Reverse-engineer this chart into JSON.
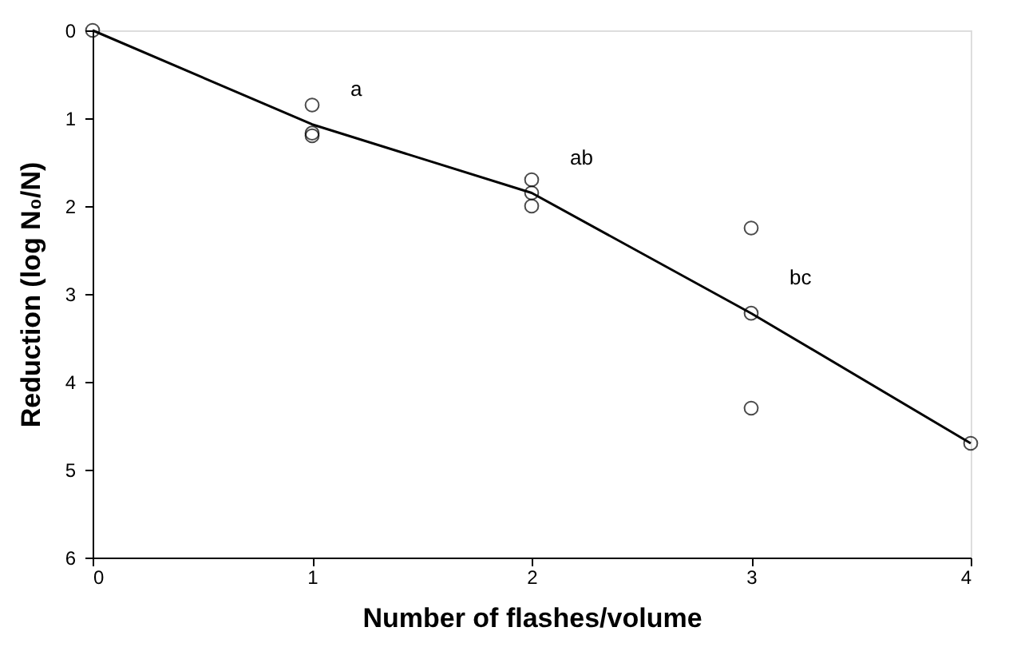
{
  "chart_data": {
    "type": "scatter",
    "xlabel": "Number of flashes/volume",
    "ylabel": "Reduction (log N₀/N)",
    "xlim": [
      0,
      4
    ],
    "xticks": [
      0,
      1,
      2,
      3,
      4
    ],
    "ylim": [
      6,
      0
    ],
    "yticks": [
      0,
      1,
      2,
      3,
      4,
      5,
      6
    ],
    "grid": false,
    "series": [
      {
        "marker": "circle",
        "color": "#000000",
        "x": [
          0,
          1,
          1,
          1,
          2,
          2,
          2,
          3,
          3,
          3,
          4
        ],
        "values": [
          0,
          0.85,
          1.17,
          1.2,
          1.7,
          1.85,
          2.0,
          2.25,
          3.22,
          4.3,
          4.7
        ]
      },
      {
        "type": "line",
        "marker": "none",
        "line_style": "solid",
        "color": "#000000",
        "x": [
          0,
          1,
          2,
          3,
          4
        ],
        "values": [
          0,
          1.07,
          1.85,
          3.22,
          4.7
        ]
      }
    ],
    "annotations": [
      "a",
      "ab",
      "bc"
    ]
  }
}
